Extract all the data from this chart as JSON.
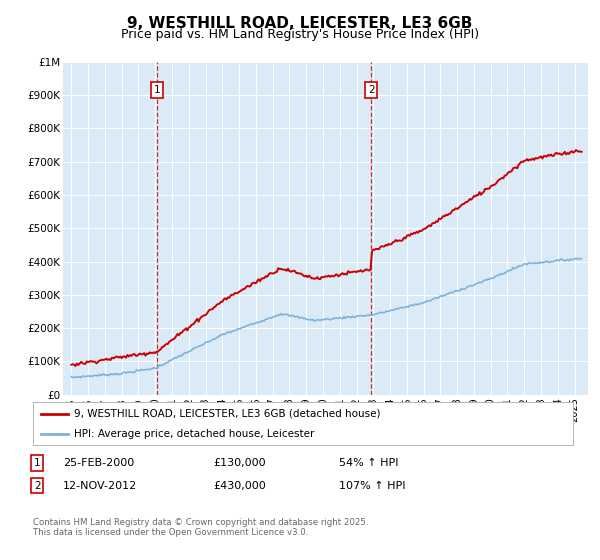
{
  "title": "9, WESTHILL ROAD, LEICESTER, LE3 6GB",
  "subtitle": "Price paid vs. HM Land Registry's House Price Index (HPI)",
  "title_fontsize": 11,
  "subtitle_fontsize": 9,
  "plot_bg_color": "#daeaf7",
  "line1_color": "#cc0000",
  "line2_color": "#7fb3d9",
  "ann1_x": 2000.12,
  "ann2_x": 2012.87,
  "legend_label1": "9, WESTHILL ROAD, LEICESTER, LE3 6GB (detached house)",
  "legend_label2": "HPI: Average price, detached house, Leicester",
  "footer_text": "Contains HM Land Registry data © Crown copyright and database right 2025.\nThis data is licensed under the Open Government Licence v3.0.",
  "ylim_min": 0,
  "ylim_max": 1000000,
  "xmin": 1994.5,
  "xmax": 2025.8,
  "yticks": [
    0,
    100000,
    200000,
    300000,
    400000,
    500000,
    600000,
    700000,
    800000,
    900000,
    1000000
  ],
  "ylabels": [
    "£0",
    "£100K",
    "£200K",
    "£300K",
    "£400K",
    "£500K",
    "£600K",
    "£700K",
    "£800K",
    "£900K",
    "£1M"
  ]
}
